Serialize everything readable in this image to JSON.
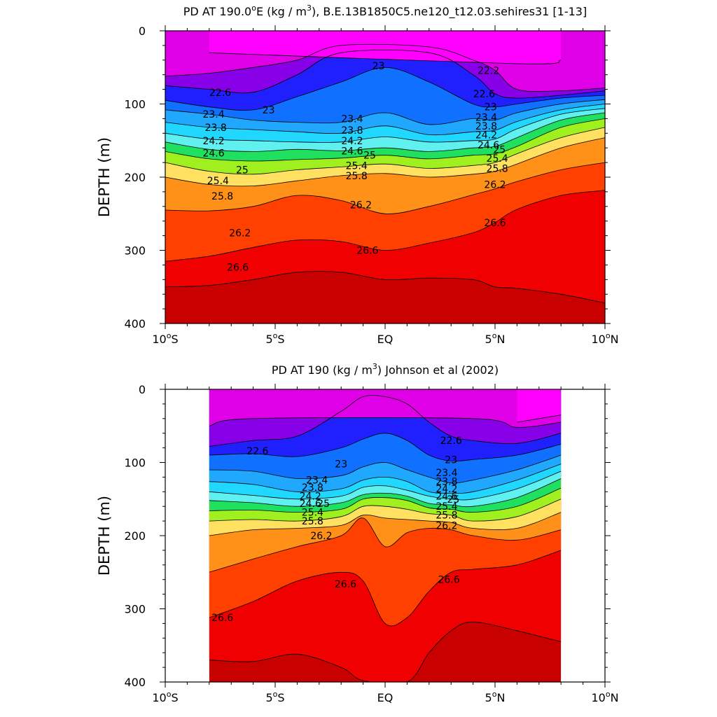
{
  "colors": {
    "levels": [
      21.8,
      22.0,
      22.2,
      22.4,
      22.6,
      22.8,
      23.0,
      23.2,
      23.4,
      23.6,
      23.8,
      24.0,
      24.2,
      24.4,
      24.6,
      24.8,
      25.0,
      25.2,
      25.4,
      25.6,
      25.8,
      26.0,
      26.2,
      26.4,
      26.6,
      26.8
    ],
    "fill": [
      "#ff00ff",
      "#e000e8",
      "#b000d8",
      "#8800e8",
      "#5a10f0",
      "#2020ff",
      "#0030ff",
      "#0050ff",
      "#1070ff",
      "#208cff",
      "#20a8ff",
      "#00c4ff",
      "#20d8ff",
      "#50e4ff",
      "#60f0f0",
      "#30e8b0",
      "#20e060",
      "#40e020",
      "#a0f020",
      "#ffff00",
      "#ffe060",
      "#ffc040",
      "#ffa830",
      "#ff9018",
      "#ff7000",
      "#ff4000",
      "#ff2000",
      "#f00000",
      "#e00000",
      "#c80000"
    ]
  },
  "chart_data": [
    {
      "type": "contour",
      "title": "PD AT 190.0",
      "title_degree_sup": "o",
      "title_mid": "E (kg / m",
      "title_power_sup": "3",
      "title_tail": "), B.E.13B1850C5.ne120_t12.03.sehires31 [1-13]",
      "ylabel": "DEPTH (m)",
      "xlim": [
        -10,
        10
      ],
      "ylim": [
        400,
        0
      ],
      "x_ticks": [
        {
          "value": -10,
          "num": "10",
          "sup": "o",
          "hemi": "S"
        },
        {
          "value": -5,
          "num": "5",
          "sup": "o",
          "hemi": "S"
        },
        {
          "value": 0,
          "num": "EQ",
          "sup": "",
          "hemi": ""
        },
        {
          "value": 5,
          "num": "5",
          "sup": "o",
          "hemi": "N"
        },
        {
          "value": 10,
          "num": "10",
          "sup": "o",
          "hemi": "N"
        }
      ],
      "y_ticks": [
        0,
        100,
        200,
        300,
        400
      ],
      "data_x_range": [
        -10,
        10
      ],
      "x": [
        -10,
        -8,
        -6,
        -4,
        -2,
        0,
        2,
        4,
        5,
        6,
        8,
        10
      ],
      "isopycnals": [
        {
          "level": 21.8,
          "depth": [
            null,
            30,
            null,
            null,
            null,
            null,
            null,
            null,
            null,
            45,
            40,
            null
          ]
        },
        {
          "level": 22.2,
          "depth": [
            62,
            58,
            50,
            40,
            20,
            null,
            22,
            40,
            54,
            80,
            82,
            78
          ]
        },
        {
          "level": 22.6,
          "depth": [
            75,
            80,
            84,
            60,
            30,
            null,
            30,
            60,
            86,
            92,
            88,
            82
          ]
        },
        {
          "level": 23.0,
          "depth": [
            95,
            104,
            108,
            90,
            70,
            50,
            70,
            100,
            104,
            100,
            92,
            88
          ]
        },
        {
          "level": 23.4,
          "depth": [
            108,
            114,
            122,
            125,
            125,
            112,
            128,
            120,
            122,
            112,
            100,
            94
          ]
        },
        {
          "level": 23.8,
          "depth": [
            125,
            132,
            135,
            138,
            140,
            130,
            142,
            138,
            136,
            124,
            108,
            100
          ]
        },
        {
          "level": 24.2,
          "depth": [
            140,
            148,
            150,
            152,
            152,
            145,
            152,
            150,
            148,
            134,
            114,
            106
          ]
        },
        {
          "level": 24.6,
          "depth": [
            152,
            162,
            165,
            162,
            164,
            160,
            165,
            160,
            158,
            146,
            122,
            112
          ]
        },
        {
          "level": 25.0,
          "depth": [
            165,
            175,
            178,
            176,
            174,
            170,
            175,
            170,
            168,
            158,
            132,
            120
          ]
        },
        {
          "level": 25.4,
          "depth": [
            180,
            192,
            196,
            190,
            186,
            182,
            188,
            184,
            180,
            168,
            146,
            132
          ]
        },
        {
          "level": 25.8,
          "depth": [
            200,
            210,
            212,
            205,
            198,
            195,
            200,
            196,
            192,
            182,
            160,
            146
          ]
        },
        {
          "level": 26.2,
          "depth": [
            245,
            246,
            240,
            225,
            232,
            250,
            240,
            224,
            216,
            206,
            190,
            180
          ]
        },
        {
          "level": 26.6,
          "depth": [
            315,
            308,
            296,
            286,
            288,
            300,
            290,
            276,
            262,
            244,
            225,
            218
          ]
        },
        {
          "level": 27.0,
          "depth": [
            350,
            348,
            340,
            330,
            330,
            340,
            338,
            340,
            350,
            352,
            360,
            372
          ]
        }
      ],
      "labels": [
        {
          "text": "22.6",
          "x": -7.5,
          "depth": 84
        },
        {
          "text": "23",
          "x": -5.3,
          "depth": 108
        },
        {
          "text": "23",
          "x": -0.3,
          "depth": 48
        },
        {
          "text": "23.4",
          "x": -7.8,
          "depth": 114
        },
        {
          "text": "23.8",
          "x": -7.7,
          "depth": 132
        },
        {
          "text": "24.2",
          "x": -7.8,
          "depth": 150
        },
        {
          "text": "24.6",
          "x": -7.8,
          "depth": 167
        },
        {
          "text": "25",
          "x": -6.5,
          "depth": 190
        },
        {
          "text": "25.4",
          "x": -7.6,
          "depth": 205
        },
        {
          "text": "25.8",
          "x": -7.4,
          "depth": 226
        },
        {
          "text": "26.2",
          "x": -6.6,
          "depth": 276
        },
        {
          "text": "26.6",
          "x": -6.7,
          "depth": 323
        },
        {
          "text": "23.4",
          "x": -1.5,
          "depth": 120
        },
        {
          "text": "23.8",
          "x": -1.5,
          "depth": 136
        },
        {
          "text": "24.2",
          "x": -1.5,
          "depth": 150
        },
        {
          "text": "24.6",
          "x": -1.5,
          "depth": 164
        },
        {
          "text": "25",
          "x": -0.7,
          "depth": 170
        },
        {
          "text": "25.4",
          "x": -1.3,
          "depth": 184
        },
        {
          "text": "25.8",
          "x": -1.3,
          "depth": 198
        },
        {
          "text": "26.2",
          "x": -1.1,
          "depth": 238
        },
        {
          "text": "26.6",
          "x": -0.8,
          "depth": 300
        },
        {
          "text": "22.2",
          "x": 4.7,
          "depth": 54
        },
        {
          "text": "22.6",
          "x": 4.5,
          "depth": 86
        },
        {
          "text": "23",
          "x": 4.8,
          "depth": 104
        },
        {
          "text": "23.4",
          "x": 4.6,
          "depth": 118
        },
        {
          "text": "23.8",
          "x": 4.6,
          "depth": 130
        },
        {
          "text": "24.2",
          "x": 4.6,
          "depth": 142
        },
        {
          "text": "24.6",
          "x": 4.7,
          "depth": 156
        },
        {
          "text": "25",
          "x": 5.2,
          "depth": 162
        },
        {
          "text": "25.4",
          "x": 5.1,
          "depth": 174
        },
        {
          "text": "25.8",
          "x": 5.1,
          "depth": 188
        },
        {
          "text": "26.2",
          "x": 5.0,
          "depth": 210
        },
        {
          "text": "26.6",
          "x": 5.0,
          "depth": 262
        }
      ]
    },
    {
      "type": "contour",
      "title": "PD AT 190 (kg / m",
      "title_degree_sup": "",
      "title_mid": "",
      "title_power_sup": "3",
      "title_tail": ") Johnson et al (2002)",
      "ylabel": "DEPTH (m)",
      "xlim": [
        -10,
        10
      ],
      "ylim": [
        400,
        0
      ],
      "x_ticks": [
        {
          "value": -10,
          "num": "10",
          "sup": "o",
          "hemi": "S"
        },
        {
          "value": -5,
          "num": "5",
          "sup": "o",
          "hemi": "S"
        },
        {
          "value": 0,
          "num": "EQ",
          "sup": "",
          "hemi": ""
        },
        {
          "value": 5,
          "num": "5",
          "sup": "o",
          "hemi": "N"
        },
        {
          "value": 10,
          "num": "10",
          "sup": "o",
          "hemi": "N"
        }
      ],
      "y_ticks": [
        0,
        100,
        200,
        300,
        400
      ],
      "data_x_range": [
        -8,
        8
      ],
      "x": [
        -8,
        -6,
        -4,
        -2,
        -1,
        0,
        1,
        2,
        3,
        4,
        6,
        8
      ],
      "isopycnals": [
        {
          "level": 21.8,
          "depth": [
            null,
            null,
            null,
            null,
            null,
            null,
            null,
            null,
            null,
            null,
            45,
            35
          ]
        },
        {
          "level": 22.2,
          "depth": [
            50,
            40,
            null,
            null,
            null,
            null,
            null,
            null,
            null,
            40,
            52,
            45
          ]
        },
        {
          "level": 22.6,
          "depth": [
            78,
            70,
            64,
            30,
            10,
            10,
            20,
            45,
            64,
            70,
            74,
            60
          ]
        },
        {
          "level": 23.0,
          "depth": [
            90,
            88,
            92,
            80,
            68,
            60,
            70,
            90,
            98,
            96,
            90,
            75
          ]
        },
        {
          "level": 23.4,
          "depth": [
            110,
            112,
            122,
            118,
            106,
            100,
            110,
            120,
            128,
            124,
            110,
            90
          ]
        },
        {
          "level": 23.8,
          "depth": [
            126,
            130,
            140,
            136,
            124,
            120,
            126,
            140,
            142,
            140,
            124,
            102
          ]
        },
        {
          "level": 24.2,
          "depth": [
            140,
            145,
            150,
            146,
            134,
            132,
            138,
            146,
            150,
            150,
            136,
            112
          ]
        },
        {
          "level": 24.6,
          "depth": [
            152,
            155,
            160,
            155,
            144,
            142,
            146,
            156,
            158,
            160,
            148,
            122
          ]
        },
        {
          "level": 25.0,
          "depth": [
            166,
            165,
            168,
            164,
            150,
            148,
            152,
            162,
            164,
            168,
            160,
            135
          ]
        },
        {
          "level": 25.4,
          "depth": [
            180,
            178,
            180,
            174,
            160,
            160,
            164,
            170,
            172,
            180,
            174,
            150
          ]
        },
        {
          "level": 25.8,
          "depth": [
            200,
            192,
            190,
            186,
            172,
            176,
            178,
            180,
            182,
            190,
            190,
            168
          ]
        },
        {
          "level": 26.2,
          "depth": [
            250,
            232,
            215,
            200,
            176,
            215,
            196,
            190,
            192,
            200,
            206,
            192
          ]
        },
        {
          "level": 26.6,
          "depth": [
            312,
            290,
            262,
            250,
            262,
            320,
            312,
            276,
            250,
            246,
            240,
            220
          ]
        },
        {
          "level": 27.0,
          "depth": [
            370,
            372,
            362,
            380,
            398,
            null,
            400,
            360,
            330,
            318,
            330,
            345
          ]
        }
      ],
      "labels": [
        {
          "text": "22.6",
          "x": -5.8,
          "depth": 84
        },
        {
          "text": "23",
          "x": -2.0,
          "depth": 102
        },
        {
          "text": "23",
          "x": 3.0,
          "depth": 96
        },
        {
          "text": "22.6",
          "x": 3.0,
          "depth": 70
        },
        {
          "text": "23.4",
          "x": -3.1,
          "depth": 124
        },
        {
          "text": "23.8",
          "x": -3.3,
          "depth": 134
        },
        {
          "text": "24.2",
          "x": -3.4,
          "depth": 146
        },
        {
          "text": "24.6",
          "x": -3.4,
          "depth": 156
        },
        {
          "text": "25",
          "x": -2.8,
          "depth": 156
        },
        {
          "text": "25.4",
          "x": -3.3,
          "depth": 168
        },
        {
          "text": "25.8",
          "x": -3.3,
          "depth": 180
        },
        {
          "text": "26.2",
          "x": -2.9,
          "depth": 200
        },
        {
          "text": "26.6",
          "x": -7.4,
          "depth": 312
        },
        {
          "text": "26.6",
          "x": -1.8,
          "depth": 266
        },
        {
          "text": "26.6",
          "x": 2.9,
          "depth": 260
        },
        {
          "text": "23.4",
          "x": 2.8,
          "depth": 114
        },
        {
          "text": "23.8",
          "x": 2.8,
          "depth": 126
        },
        {
          "text": "24.2",
          "x": 2.8,
          "depth": 136
        },
        {
          "text": "24.6",
          "x": 2.8,
          "depth": 146
        },
        {
          "text": "25",
          "x": 3.1,
          "depth": 150
        },
        {
          "text": "25.4",
          "x": 2.8,
          "depth": 160
        },
        {
          "text": "25.8",
          "x": 2.8,
          "depth": 172
        },
        {
          "text": "26.2",
          "x": 2.8,
          "depth": 186
        }
      ]
    }
  ]
}
